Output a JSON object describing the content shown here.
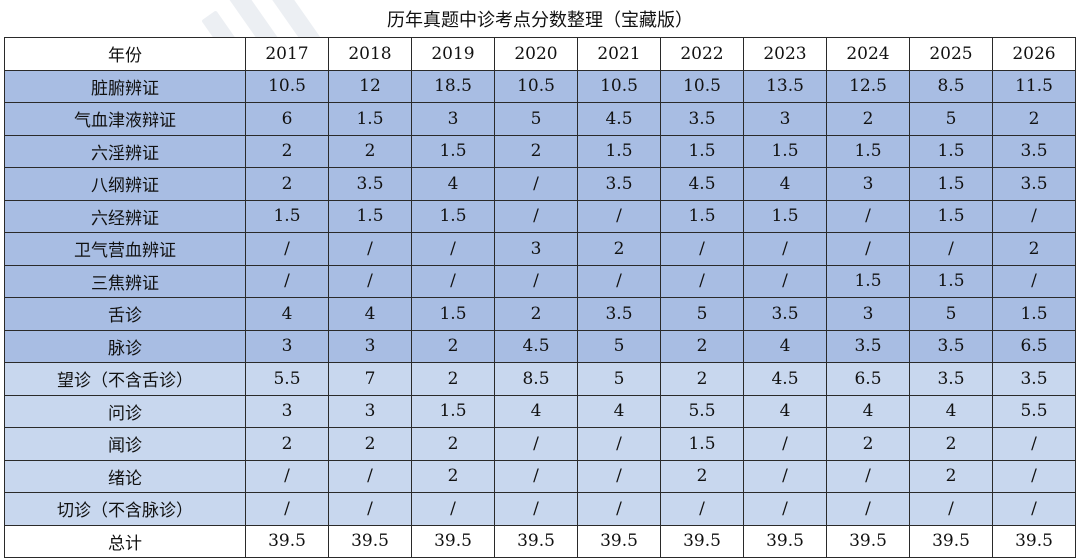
{
  "title": "历年真题中诊考点分数整理（宝藏版）",
  "table": {
    "header": [
      "年份",
      "2017",
      "2018",
      "2019",
      "2020",
      "2021",
      "2022",
      "2023",
      "2024",
      "2025",
      "2026"
    ],
    "rows": [
      {
        "label": "脏腑辨证",
        "values": [
          "10.5",
          "12",
          "18.5",
          "10.5",
          "10.5",
          "10.5",
          "13.5",
          "12.5",
          "8.5",
          "11.5"
        ]
      },
      {
        "label": "气血津液辩证",
        "values": [
          "6",
          "1.5",
          "3",
          "5",
          "4.5",
          "3.5",
          "3",
          "2",
          "5",
          "2"
        ]
      },
      {
        "label": "六淫辨证",
        "values": [
          "2",
          "2",
          "1.5",
          "2",
          "1.5",
          "1.5",
          "1.5",
          "1.5",
          "1.5",
          "3.5"
        ]
      },
      {
        "label": "八纲辨证",
        "values": [
          "2",
          "3.5",
          "4",
          "/",
          "3.5",
          "4.5",
          "4",
          "3",
          "1.5",
          "3.5"
        ]
      },
      {
        "label": "六经辨证",
        "values": [
          "1.5",
          "1.5",
          "1.5",
          "/",
          "/",
          "1.5",
          "1.5",
          "/",
          "1.5",
          "/"
        ]
      },
      {
        "label": "卫气营血辨证",
        "values": [
          "/",
          "/",
          "/",
          "3",
          "2",
          "/",
          "/",
          "/",
          "/",
          "2"
        ]
      },
      {
        "label": "三焦辨证",
        "values": [
          "/",
          "/",
          "/",
          "/",
          "/",
          "/",
          "/",
          "1.5",
          "1.5",
          "/"
        ]
      },
      {
        "label": "舌诊",
        "values": [
          "4",
          "4",
          "1.5",
          "2",
          "3.5",
          "5",
          "3.5",
          "3",
          "5",
          "1.5"
        ]
      },
      {
        "label": "脉诊",
        "values": [
          "3",
          "3",
          "2",
          "4.5",
          "5",
          "2",
          "4",
          "3.5",
          "3.5",
          "6.5"
        ]
      },
      {
        "label": "望诊（不含舌诊）",
        "values": [
          "5.5",
          "7",
          "2",
          "8.5",
          "5",
          "2",
          "4.5",
          "6.5",
          "3.5",
          "3.5"
        ]
      },
      {
        "label": "问诊",
        "values": [
          "3",
          "3",
          "1.5",
          "4",
          "4",
          "5.5",
          "4",
          "4",
          "4",
          "5.5"
        ]
      },
      {
        "label": "闻诊",
        "values": [
          "2",
          "2",
          "2",
          "/",
          "/",
          "1.5",
          "/",
          "2",
          "2",
          "/"
        ]
      },
      {
        "label": "绪论",
        "values": [
          "/",
          "/",
          "2",
          "/",
          "/",
          "2",
          "/",
          "/",
          "2",
          "/"
        ]
      },
      {
        "label": "切诊（不含脉诊）",
        "values": [
          "/",
          "/",
          "/",
          "/",
          "/",
          "/",
          "/",
          "/",
          "/",
          "/"
        ]
      }
    ],
    "total": {
      "label": "总计",
      "values": [
        "39.5",
        "39.5",
        "39.5",
        "39.5",
        "39.5",
        "39.5",
        "39.5",
        "39.5",
        "39.5",
        "39.5"
      ]
    }
  },
  "colors": {
    "dark_row": "#a8bde3",
    "light_row": "#c8d7ee",
    "border": "#2a2a2a"
  }
}
